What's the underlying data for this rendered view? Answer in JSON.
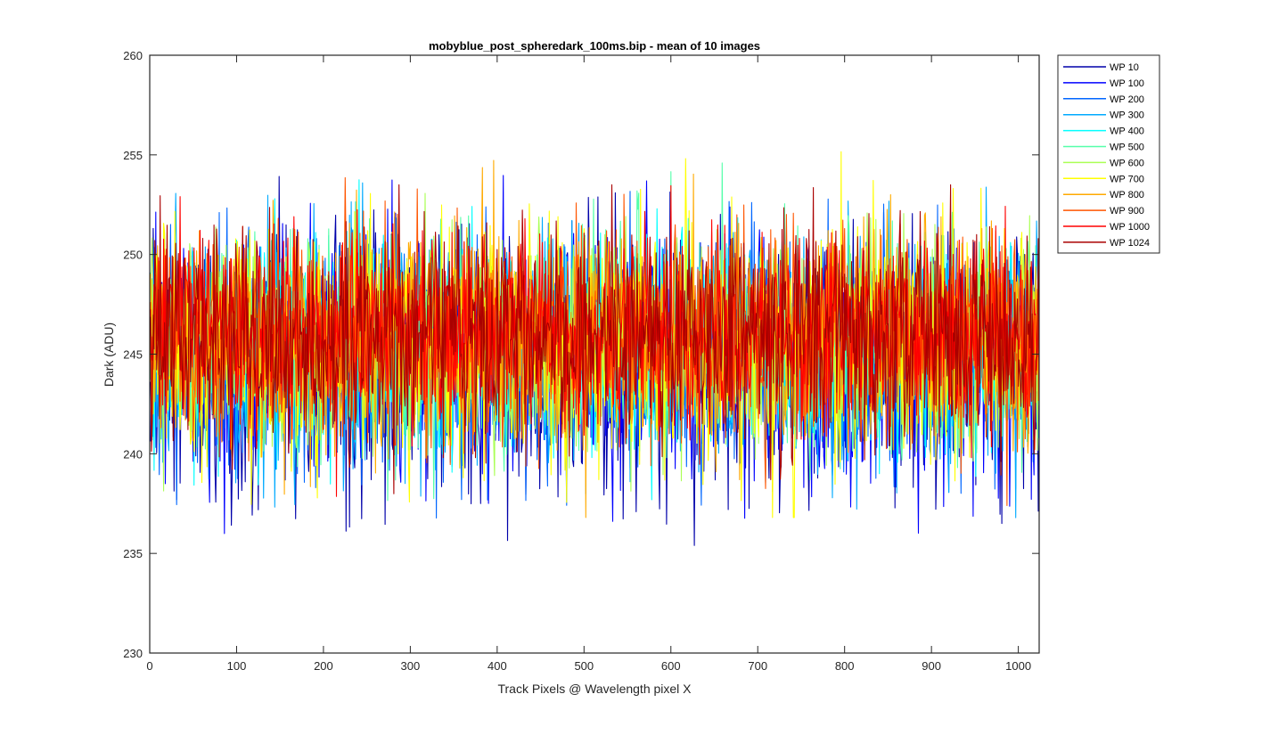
{
  "chart_data": {
    "type": "line",
    "title": "mobyblue_post_spheredark_100ms.bip - mean of 10 images",
    "xlabel": "Track Pixels @ Wavelength pixel X",
    "ylabel": "Dark (ADU)",
    "xlim": [
      0,
      1024
    ],
    "ylim": [
      230,
      260
    ],
    "xticks": [
      0,
      100,
      200,
      300,
      400,
      500,
      600,
      700,
      800,
      900,
      1000
    ],
    "yticks": [
      230,
      235,
      240,
      245,
      250,
      255,
      260
    ],
    "grid": false,
    "legend_position": "outside-top-right",
    "x_range": [
      1,
      1024
    ],
    "series": [
      {
        "name": "WP 10",
        "color": "#0000aa",
        "mean": 244.5,
        "min": 232.8,
        "max": 255.8
      },
      {
        "name": "WP 100",
        "color": "#0000ff",
        "mean": 244.8,
        "min": 234.2,
        "max": 255.8
      },
      {
        "name": "WP 200",
        "color": "#0066ff",
        "mean": 245.0,
        "min": 236.0,
        "max": 255.5
      },
      {
        "name": "WP 300",
        "color": "#00aaff",
        "mean": 245.2,
        "min": 236.5,
        "max": 257.1
      },
      {
        "name": "WP 400",
        "color": "#00ffff",
        "mean": 245.3,
        "min": 235.8,
        "max": 254.5
      },
      {
        "name": "WP 500",
        "color": "#55ffaa",
        "mean": 245.4,
        "min": 236.4,
        "max": 255.8
      },
      {
        "name": "WP 600",
        "color": "#aaff55",
        "mean": 245.5,
        "min": 236.6,
        "max": 255.0
      },
      {
        "name": "WP 700",
        "color": "#ffff00",
        "mean": 245.6,
        "min": 236.8,
        "max": 257.5
      },
      {
        "name": "WP 800",
        "color": "#ffaa00",
        "mean": 245.8,
        "min": 236.8,
        "max": 255.7
      },
      {
        "name": "WP 900",
        "color": "#ff5500",
        "mean": 246.0,
        "min": 237.4,
        "max": 256.5
      },
      {
        "name": "WP 1000",
        "color": "#ff0000",
        "mean": 246.2,
        "min": 237.0,
        "max": 254.7
      },
      {
        "name": "WP 1024",
        "color": "#aa0000",
        "mean": 246.0,
        "min": 234.7,
        "max": 253.5
      }
    ]
  }
}
